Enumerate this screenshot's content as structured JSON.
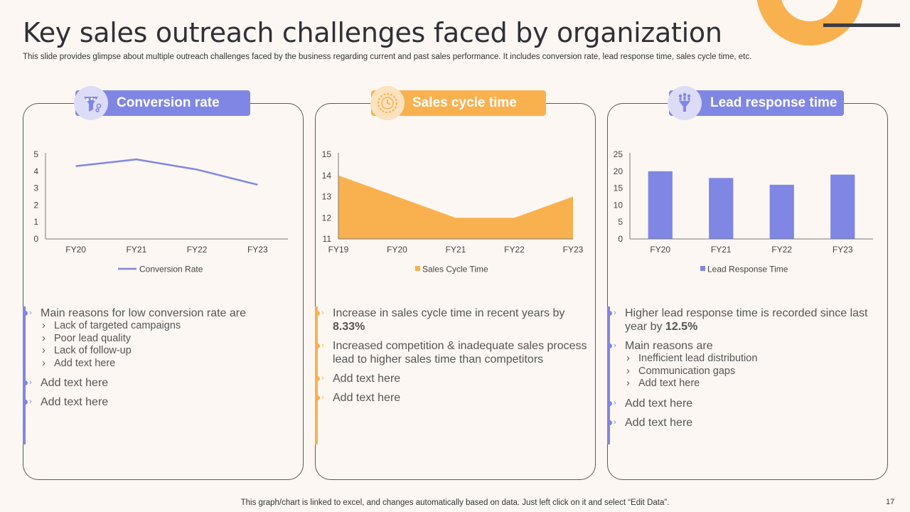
{
  "title": "Key sales outreach challenges faced by organization",
  "subtitle": "This slide provides glimpse about multiple outreach challenges faced by the business regarding current and past sales performance. It includes conversion rate, lead response time, sales cycle time, etc.",
  "colors": {
    "purple": "#7f86e3",
    "orange": "#f9b150",
    "icon_bg_purple": "#dcdcf6",
    "icon_bg_orange": "#fde2bf"
  },
  "panels": [
    {
      "heading": "Conversion rate",
      "icon": "funnel-icon",
      "bullets": [
        {
          "text": "Main reasons for low conversion rate are",
          "subs": [
            "Lack of targeted campaigns",
            "Poor lead quality",
            "Lack of follow-up",
            "Add text here"
          ]
        },
        {
          "text": "Add text here"
        },
        {
          "text": "Add text here"
        }
      ]
    },
    {
      "heading": "Sales cycle time",
      "icon": "cycle-time-icon",
      "bullets": [
        {
          "text": "Increase in sales cycle time in recent years by ",
          "bold": "8.33%"
        },
        {
          "text": "Increased competition & inadequate sales process lead to higher sales time than competitors"
        },
        {
          "text": "Add text here"
        },
        {
          "text": "Add text here"
        }
      ]
    },
    {
      "heading": "Lead response time",
      "icon": "lead-funnel-icon",
      "bullets": [
        {
          "text": "Higher lead response time is recorded since last year by ",
          "bold": "12.5%"
        },
        {
          "text": "Main reasons are",
          "subs": [
            "Inefficient lead distribution",
            "Communication gaps",
            "Add text here"
          ]
        },
        {
          "text": "Add text here"
        },
        {
          "text": "Add text here"
        }
      ]
    }
  ],
  "chart_data": [
    {
      "type": "line",
      "categories": [
        "FY20",
        "FY21",
        "FY22",
        "FY23"
      ],
      "series": [
        {
          "name": "Conversion Rate",
          "values": [
            4.3,
            4.7,
            4.1,
            3.2
          ]
        }
      ],
      "ylim": [
        0,
        5
      ],
      "yticks": [
        0,
        1,
        2,
        3,
        4,
        5
      ],
      "legend": "bottom",
      "grid": false
    },
    {
      "type": "area",
      "categories": [
        "FY19",
        "FY20",
        "FY21",
        "FY22",
        "FY23"
      ],
      "series": [
        {
          "name": "Sales Cycle Time",
          "values": [
            14,
            13,
            12,
            12,
            13
          ]
        }
      ],
      "ylim": [
        11,
        15
      ],
      "yticks": [
        11,
        12,
        13,
        14,
        15
      ],
      "legend": "bottom",
      "grid": false
    },
    {
      "type": "bar",
      "categories": [
        "FY20",
        "FY21",
        "FY22",
        "FY23"
      ],
      "series": [
        {
          "name": "Lead Response Time",
          "values": [
            20,
            18,
            16,
            19
          ]
        }
      ],
      "ylim": [
        0,
        25
      ],
      "yticks": [
        0,
        5,
        10,
        15,
        20,
        25
      ],
      "legend": "bottom",
      "grid": false
    }
  ],
  "footer": "This graph/chart is linked to excel, and changes automatically based on data. Just left click on it and select “Edit Data”.",
  "page_number": "17"
}
